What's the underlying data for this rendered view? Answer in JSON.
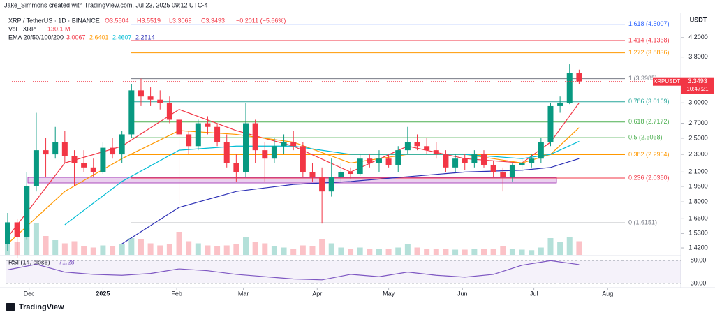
{
  "chart_data": {
    "type": "candlestick",
    "author": "Jake_Simmons created with TradingView.com, Jul 23, 2025 09:12 UTC-4",
    "symbol": "XRP / TetherUS · 1D · BINANCE",
    "ohlc_header": [
      "O3.5504",
      "H3.5519",
      "L3.3069",
      "C3.3493",
      "−0.2011 (−5.66%)"
    ],
    "volume_label": "Vol · XRP",
    "volume_last": "130.1 M",
    "currency": "USDT",
    "log_scale": true,
    "ylim": [
      1.37,
      4.71
    ],
    "yticks": [
      {
        "value": 4.2,
        "label": "4.2000"
      },
      {
        "value": 3.8,
        "label": "3.8000"
      },
      {
        "value": 3.0,
        "label": "3.0000"
      },
      {
        "value": 2.7,
        "label": "2.7000"
      },
      {
        "value": 2.5,
        "label": "2.5000"
      },
      {
        "value": 2.3,
        "label": "2.3000"
      },
      {
        "value": 2.1,
        "label": "2.1000"
      },
      {
        "value": 1.95,
        "label": "1.9500"
      },
      {
        "value": 1.8,
        "label": "1.8000"
      },
      {
        "value": 1.65,
        "label": "1.6500"
      },
      {
        "value": 1.53,
        "label": "1.5300"
      },
      {
        "value": 1.42,
        "label": "1.4200"
      }
    ],
    "xticks": [
      {
        "value": 2.25,
        "label": "Dec"
      },
      {
        "value": 10,
        "label": "2025"
      },
      {
        "value": 17.75,
        "label": "Feb"
      },
      {
        "value": 24.75,
        "label": "Mar"
      },
      {
        "value": 32.5,
        "label": "Apr"
      },
      {
        "value": 40,
        "label": "May"
      },
      {
        "value": 47.75,
        "label": "Jun"
      },
      {
        "value": 55.25,
        "label": "Jul"
      },
      {
        "value": 63,
        "label": "Aug"
      }
    ],
    "up_color": "#089981",
    "down_color": "#f23645",
    "ohlc": [
      [
        1.45,
        1.7,
        1.4,
        1.62
      ],
      [
        1.62,
        1.65,
        1.35,
        1.5
      ],
      [
        1.5,
        2.1,
        1.48,
        1.95
      ],
      [
        1.95,
        2.85,
        1.9,
        2.35
      ],
      [
        2.35,
        2.5,
        2.05,
        2.3
      ],
      [
        2.3,
        2.65,
        2.25,
        2.45
      ],
      [
        2.45,
        2.6,
        2.2,
        2.28
      ],
      [
        2.28,
        2.35,
        1.95,
        2.2
      ],
      [
        2.2,
        2.35,
        2.1,
        2.15
      ],
      [
        2.15,
        2.25,
        2.05,
        2.1
      ],
      [
        2.1,
        2.45,
        2.08,
        2.38
      ],
      [
        2.38,
        2.5,
        2.25,
        2.3
      ],
      [
        2.3,
        2.6,
        2.2,
        2.55
      ],
      [
        2.55,
        3.3,
        2.5,
        3.2
      ],
      [
        3.2,
        3.4,
        2.95,
        3.1
      ],
      [
        3.1,
        3.25,
        2.95,
        3.05
      ],
      [
        3.05,
        3.2,
        2.9,
        3.0
      ],
      [
        3.0,
        3.1,
        2.7,
        2.75
      ],
      [
        2.75,
        2.8,
        1.77,
        2.55
      ],
      [
        2.55,
        2.6,
        2.3,
        2.4
      ],
      [
        2.4,
        2.75,
        2.35,
        2.7
      ],
      [
        2.7,
        2.8,
        2.55,
        2.65
      ],
      [
        2.65,
        2.7,
        2.4,
        2.45
      ],
      [
        2.45,
        2.55,
        2.15,
        2.2
      ],
      [
        2.2,
        2.3,
        2.0,
        2.1
      ],
      [
        2.1,
        3.0,
        2.05,
        2.7
      ],
      [
        2.7,
        2.75,
        2.2,
        2.35
      ],
      [
        2.35,
        2.45,
        2.0,
        2.25
      ],
      [
        2.25,
        2.5,
        2.2,
        2.4
      ],
      [
        2.4,
        2.55,
        2.3,
        2.45
      ],
      [
        2.45,
        2.6,
        2.35,
        2.4
      ],
      [
        2.4,
        2.45,
        2.05,
        2.1
      ],
      [
        2.1,
        2.2,
        2.0,
        2.05
      ],
      [
        2.05,
        2.15,
        1.61,
        1.9
      ],
      [
        1.9,
        2.25,
        1.85,
        2.05
      ],
      [
        2.05,
        2.2,
        2.0,
        2.1
      ],
      [
        2.1,
        2.15,
        2.03,
        2.08
      ],
      [
        2.08,
        2.3,
        2.06,
        2.25
      ],
      [
        2.25,
        2.3,
        2.15,
        2.2
      ],
      [
        2.2,
        2.35,
        2.1,
        2.25
      ],
      [
        2.25,
        2.3,
        2.15,
        2.18
      ],
      [
        2.18,
        2.4,
        2.1,
        2.35
      ],
      [
        2.35,
        2.65,
        2.3,
        2.45
      ],
      [
        2.45,
        2.55,
        2.35,
        2.4
      ],
      [
        2.4,
        2.5,
        2.3,
        2.35
      ],
      [
        2.35,
        2.45,
        2.25,
        2.3
      ],
      [
        2.3,
        2.35,
        2.1,
        2.15
      ],
      [
        2.15,
        2.3,
        2.1,
        2.25
      ],
      [
        2.25,
        2.3,
        2.12,
        2.2
      ],
      [
        2.2,
        2.35,
        2.15,
        2.3
      ],
      [
        2.3,
        2.35,
        2.15,
        2.18
      ],
      [
        2.18,
        2.22,
        2.05,
        2.1
      ],
      [
        2.1,
        2.15,
        1.9,
        2.05
      ],
      [
        2.05,
        2.2,
        2.0,
        2.18
      ],
      [
        2.18,
        2.25,
        2.1,
        2.2
      ],
      [
        2.2,
        2.3,
        2.15,
        2.25
      ],
      [
        2.25,
        2.5,
        2.2,
        2.45
      ],
      [
        2.45,
        3.0,
        2.4,
        2.95
      ],
      [
        2.95,
        3.1,
        2.85,
        3.0
      ],
      [
        3.0,
        3.66,
        2.98,
        3.5
      ],
      [
        3.5,
        3.56,
        3.3,
        3.35
      ]
    ],
    "volume": [
      150,
      120,
      260,
      300,
      180,
      140,
      110,
      130,
      80,
      70,
      90,
      80,
      100,
      160,
      150,
      110,
      90,
      100,
      220,
      130,
      110,
      90,
      80,
      90,
      100,
      170,
      120,
      110,
      80,
      70,
      60,
      90,
      80,
      150,
      110,
      70,
      60,
      70,
      60,
      60,
      55,
      70,
      100,
      70,
      60,
      55,
      60,
      50,
      50,
      55,
      60,
      55,
      80,
      60,
      50,
      45,
      70,
      160,
      120,
      170,
      130
    ],
    "ema": {
      "label": "EMA 20/50/100/200",
      "x": [
        0,
        6,
        12,
        18,
        24,
        30,
        36,
        42,
        48,
        54,
        57,
        60
      ],
      "series": [
        {
          "color": "#f23645",
          "last": 3.0067,
          "values": [
            1.5,
            2.2,
            2.4,
            2.9,
            2.6,
            2.4,
            2.1,
            2.4,
            2.25,
            2.2,
            2.45,
            3.0
          ]
        },
        {
          "color": "#ff9800",
          "last": 2.6401,
          "values": [
            1.45,
            1.9,
            2.25,
            2.6,
            2.55,
            2.45,
            2.2,
            2.3,
            2.3,
            2.2,
            2.3,
            2.64
          ]
        },
        {
          "color": "#00bcd4",
          "last": 2.4607,
          "values": [
            null,
            1.6,
            2.0,
            2.35,
            2.4,
            2.4,
            2.3,
            2.3,
            2.3,
            2.25,
            2.3,
            2.46
          ]
        },
        {
          "color": "#2b2fb5",
          "last": 2.2514,
          "values": [
            null,
            null,
            1.45,
            1.75,
            1.9,
            1.97,
            2.0,
            2.05,
            2.1,
            2.12,
            2.15,
            2.25
          ]
        }
      ]
    },
    "fib": [
      {
        "label": "1.618 (4.5007)",
        "value": 4.5007,
        "color": "#2962ff"
      },
      {
        "label": "1.414 (4.1368)",
        "value": 4.1368,
        "color": "#f23645"
      },
      {
        "label": "1.272 (3.8836)",
        "value": 3.8836,
        "color": "#ff9800"
      },
      {
        "label": "1 (3.3985)",
        "value": 3.3985,
        "color": "#787b86"
      },
      {
        "label": "0.786 (3.0169)",
        "value": 3.0169,
        "color": "#26a69a"
      },
      {
        "label": "0.618 (2.7172)",
        "value": 2.7172,
        "color": "#4caf50"
      },
      {
        "label": "0.5 (2.5068)",
        "value": 2.5068,
        "color": "#4caf50"
      },
      {
        "label": "0.382 (2.2964)",
        "value": 2.2964,
        "color": "#ff9800"
      },
      {
        "label": "0.236 (2.0360)",
        "value": 2.036,
        "color": "#f23645"
      },
      {
        "label": "0 (1.6151)",
        "value": 1.6151,
        "color": "#787b86"
      }
    ],
    "price_tag": {
      "symbol": "XRPUSDT",
      "price": 3.3493,
      "countdown": "10:47:21"
    },
    "rsi": {
      "label": "RSI (14, close)",
      "last": 71.28,
      "color": "#7e57c2",
      "ylim": [
        24,
        91
      ],
      "yticks": [
        {
          "value": 80,
          "label": "80.00"
        },
        {
          "value": 30,
          "label": "30.00"
        }
      ],
      "x": [
        0,
        3,
        6,
        9,
        12,
        15,
        18,
        21,
        24,
        27,
        30,
        33,
        36,
        39,
        42,
        45,
        48,
        51,
        54,
        57,
        60
      ],
      "values": [
        60,
        72,
        55,
        50,
        48,
        52,
        62,
        58,
        50,
        45,
        40,
        38,
        50,
        45,
        55,
        48,
        44,
        50,
        70,
        80,
        71.28
      ]
    },
    "brand": "TradingView"
  }
}
